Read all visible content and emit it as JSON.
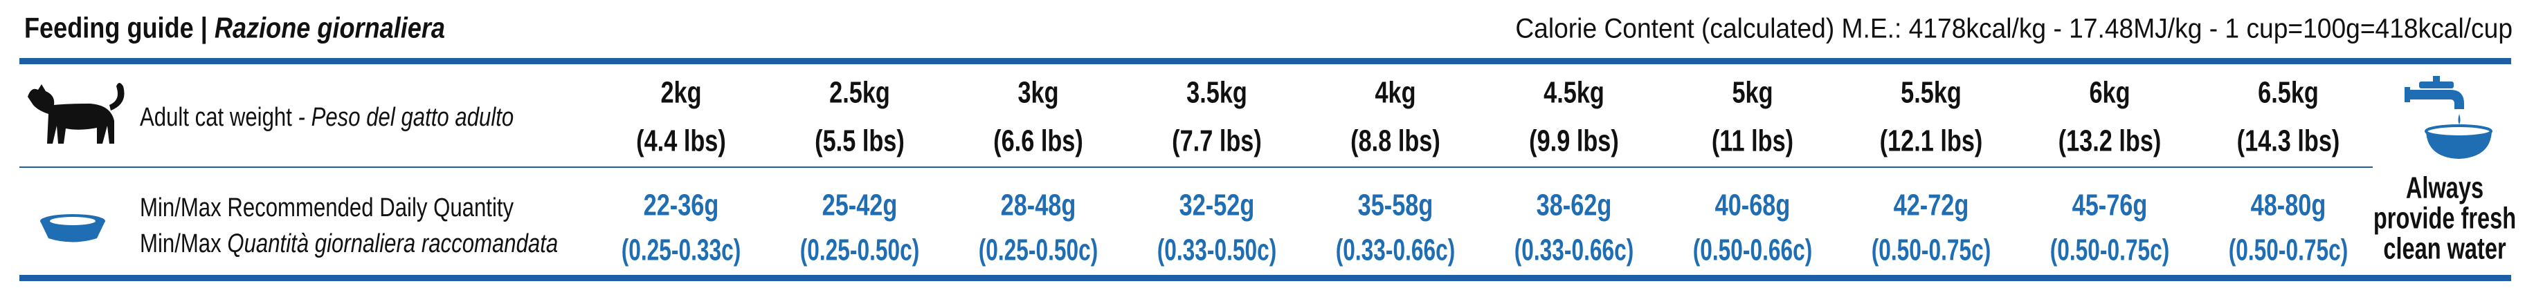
{
  "header": {
    "title": "Feeding guide",
    "separator": "|",
    "subtitle": "Razione giornaliera",
    "calorie_content": "Calorie Content (calculated) M.E.: 4178kcal/kg - 17.48MJ/kg - 1 cup=100g=418kcal/cup"
  },
  "table": {
    "weight_label": {
      "en": "Adult cat weight",
      "it": "- Peso del gatto adulto"
    },
    "quantity_label": {
      "en": "Min/Max Recommended Daily Quantity",
      "it_prefix": "Min/Max",
      "it": "Quantità giornaliera raccomandata"
    },
    "columns": [
      {
        "weight": "2kg",
        "weight_lbs": "(4.4 lbs)",
        "grams": "22-36g",
        "cups": "(0.25-0.33c)"
      },
      {
        "weight": "2.5kg",
        "weight_lbs": "(5.5 lbs)",
        "grams": "25-42g",
        "cups": "(0.25-0.50c)"
      },
      {
        "weight": "3kg",
        "weight_lbs": "(6.6 lbs)",
        "grams": "28-48g",
        "cups": "(0.25-0.50c)"
      },
      {
        "weight": "3.5kg",
        "weight_lbs": "(7.7 lbs)",
        "grams": "32-52g",
        "cups": "(0.33-0.50c)"
      },
      {
        "weight": "4kg",
        "weight_lbs": "(8.8 lbs)",
        "grams": "35-58g",
        "cups": "(0.33-0.66c)"
      },
      {
        "weight": "4.5kg",
        "weight_lbs": "(9.9 lbs)",
        "grams": "38-62g",
        "cups": "(0.33-0.66c)"
      },
      {
        "weight": "5kg",
        "weight_lbs": "(11 lbs)",
        "grams": "40-68g",
        "cups": "(0.50-0.66c)"
      },
      {
        "weight": "5.5kg",
        "weight_lbs": "(12.1 lbs)",
        "grams": "42-72g",
        "cups": "(0.50-0.75c)"
      },
      {
        "weight": "6kg",
        "weight_lbs": "(13.2 lbs)",
        "grams": "45-76g",
        "cups": "(0.50-0.75c)"
      },
      {
        "weight": "6.5kg",
        "weight_lbs": "(14.3 lbs)",
        "grams": "48-80g",
        "cups": "(0.50-0.75c)"
      }
    ]
  },
  "water_note": [
    "Always",
    "provide fresh",
    "clean water"
  ]
}
